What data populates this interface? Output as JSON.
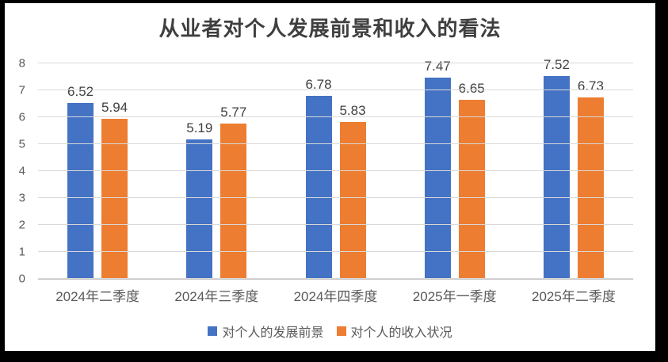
{
  "title": "从业者对个人发展前景和收入的看法",
  "chart_data": {
    "type": "bar",
    "title": "从业者对个人发展前景和收入的看法",
    "categories": [
      "2024年二季度",
      "2024年三季度",
      "2024年四季度",
      "2025年一季度",
      "2025年二季度"
    ],
    "series": [
      {
        "name": "对个人的发展前景",
        "color": "#4472C4",
        "values": [
          6.52,
          5.19,
          6.78,
          7.47,
          7.52
        ]
      },
      {
        "name": "对个人的收入状况",
        "color": "#ED7D31",
        "values": [
          5.94,
          5.77,
          5.83,
          6.65,
          6.73
        ]
      }
    ],
    "xlabel": "",
    "ylabel": "",
    "ylim": [
      0,
      8
    ],
    "y_ticks": [
      0,
      1,
      2,
      3,
      4,
      5,
      6,
      7,
      8
    ],
    "grid": true,
    "data_labels": true,
    "legend_position": "bottom"
  },
  "colors": {
    "frame_background": "#000000",
    "chart_background": "#ffffff",
    "gridline": "#d9d9d9",
    "axis_line": "#bfbfbf",
    "title_text": "#3f3f3f",
    "data_label_text": "#404040",
    "axis_text": "#595959",
    "series_blue": "#4472C4",
    "series_orange": "#ED7D31"
  }
}
